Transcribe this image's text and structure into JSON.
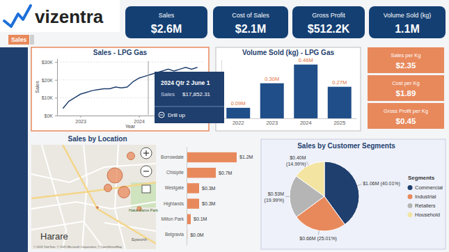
{
  "logo": "vizentra",
  "page_tab": "Sales",
  "kpis": [
    {
      "label": "Sales",
      "value": "$2.6M"
    },
    {
      "label": "Cost of Sales",
      "value": "$2.1M"
    },
    {
      "label": "Gross Profit",
      "value": "$512.2K"
    },
    {
      "label": "Volume Sold (kg)",
      "value": "1.1M"
    }
  ],
  "unit_kpis": [
    {
      "label": "Sales per Kg",
      "value": "$2.35"
    },
    {
      "label": "Cost per Kg",
      "value": "$1.89"
    },
    {
      "label": "Gross Profit per Kg",
      "value": "$0.45"
    }
  ],
  "tooltip": {
    "title": "2024 Qtr 2 June 1",
    "label": "Sales",
    "value": "$17,852.31",
    "action": "Drill up"
  },
  "map": {
    "city": "Harare",
    "places": [
      "Haka Game Park",
      "Epworth"
    ],
    "attribution": "© 2025 TomTom, © 2025 Microsoft Corporation, © OpenStreetMap"
  },
  "chart_data": [
    {
      "type": "line",
      "title": "Sales - LPG Gas",
      "xlabel": "Year",
      "ylabel": "Sales",
      "x": [
        2022.7,
        2022.8,
        2022.9,
        2023.0,
        2023.1,
        2023.2,
        2023.3,
        2023.4,
        2023.5,
        2023.6,
        2023.7,
        2023.8,
        2023.9,
        2024.0,
        2024.1,
        2024.2,
        2024.3,
        2024.4,
        2024.5,
        2024.6,
        2024.7,
        2024.8,
        2024.9,
        2025.0
      ],
      "values": [
        4000,
        8000,
        10000,
        12000,
        13000,
        14000,
        14500,
        15000,
        15000,
        16000,
        15500,
        16000,
        19000,
        21000,
        22000,
        23000,
        24000,
        25000,
        26000,
        25000,
        26000,
        27000,
        26000,
        27000
      ],
      "color": "#1F3F6E",
      "xlim": [
        2022.6,
        2025.1
      ],
      "xticks": [
        2023,
        2024
      ],
      "ylim": [
        0,
        32000
      ],
      "yticks": [
        {
          "value": 0,
          "label": "$0K"
        },
        {
          "value": 10000,
          "label": "$10K"
        },
        {
          "value": 20000,
          "label": "$20K"
        },
        {
          "value": 30000,
          "label": "$30K"
        }
      ],
      "grid": true
    },
    {
      "type": "bar",
      "title": "Volume Sold (kg) - LPG Gas",
      "categories": [
        "2022",
        "2023",
        "2024",
        "2025"
      ],
      "values": [
        0.09,
        0.3,
        0.46,
        0.27
      ],
      "value_labels": [
        "0.09M",
        "0.30M",
        "0.46M",
        "0.27M"
      ],
      "color": "#1F4E89",
      "ylim": [
        0,
        0.5
      ],
      "data_labels": true,
      "tick_labels": "x"
    },
    {
      "type": "bar",
      "orientation": "horizontal",
      "title": "Sales by Location",
      "categories": [
        "Borrowdale",
        "Chisipite",
        "Westgate",
        "Highlands",
        "Milton Park",
        "Belgravia"
      ],
      "values": [
        1.2,
        0.7,
        0.3,
        0.3,
        0.1,
        0.02
      ],
      "value_labels": [
        "$1.2M",
        "$0.7M",
        "$0.3M",
        "$0.3M",
        "$0.1M",
        "$0.0M"
      ],
      "color": "#E8895C",
      "xlim": [
        0,
        1.2
      ],
      "data_labels": true,
      "tick_labels": "y"
    },
    {
      "type": "pie",
      "title": "Sales by Customer Segments",
      "categories": [
        "Commercial",
        "Industrial",
        "Retailers",
        "Household"
      ],
      "values": [
        1.06,
        0.66,
        0.53,
        0.4
      ],
      "value_labels": [
        "$1.06M (40.01%)",
        "$0.66M (25.01%)",
        "$0.53M (19.99%)",
        "$0.40M (14.99%)"
      ],
      "colors": [
        "#1F3F6E",
        "#E8895C",
        "#B5B5B5",
        "#F3E4A2"
      ],
      "legend": "right",
      "legend_title": "Segments",
      "data_labels": true
    }
  ]
}
